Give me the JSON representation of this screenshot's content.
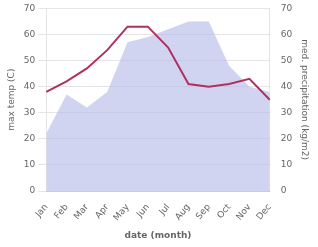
{
  "chart_data": {
    "type": "line",
    "categories": [
      "Jan",
      "Feb",
      "Mar",
      "Apr",
      "May",
      "Jun",
      "Jul",
      "Aug",
      "Sep",
      "Oct",
      "Nov",
      "Dec"
    ],
    "xlabel": "date (month)",
    "ylabel": "max temp (C)",
    "y2label": "med. precipitation (kg/m2)",
    "series": [
      {
        "type": "area",
        "axis": "y2",
        "color": "#b0b8e8",
        "values": [
          22,
          37,
          32,
          38,
          57,
          59,
          62,
          65,
          65,
          48,
          40,
          38
        ]
      },
      {
        "type": "line",
        "axis": "y",
        "color": "#b03060",
        "values": [
          38,
          42,
          47,
          54,
          63,
          63,
          55,
          41,
          40,
          41,
          43,
          35
        ]
      }
    ],
    "ylim": [
      0,
      70
    ],
    "yticks": [
      0,
      10,
      20,
      30,
      40,
      50,
      60,
      70
    ],
    "y2lim": [
      0,
      70
    ],
    "y2ticks": [
      0,
      10,
      20,
      30,
      40,
      50,
      60,
      70
    ],
    "grid": true
  }
}
